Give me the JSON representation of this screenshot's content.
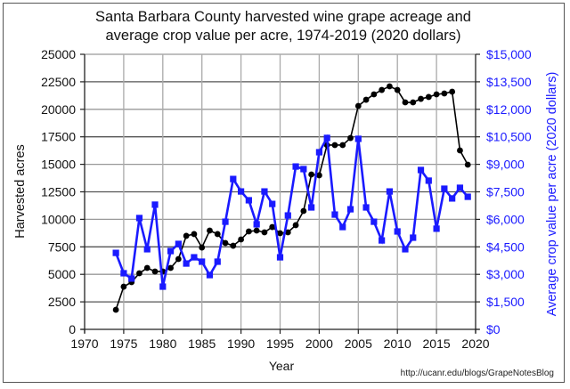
{
  "chart_data": {
    "type": "line",
    "title": "Santa Barbara County harvested wine grape acreage and average crop value per acre, 1974-2019 (2020 dollars)",
    "title_lines": [
      "Santa Barbara County harvested wine grape acreage and",
      "average crop value per acre, 1974-2019 (2020 dollars)"
    ],
    "xlabel": "Year",
    "ylabel": "Harvested acres",
    "ylabel_right": "Average crop value per acre (2020 dollars)",
    "xlim": [
      1970,
      2020
    ],
    "ylim": [
      0,
      25000
    ],
    "ylim_right": [
      0,
      15000
    ],
    "x_ticks": [
      "1970",
      "1975",
      "1980",
      "1985",
      "1990",
      "1995",
      "2000",
      "2005",
      "2010",
      "2015",
      "2020"
    ],
    "y_ticks_left": [
      "0",
      "2500",
      "5000",
      "7500",
      "10000",
      "12500",
      "15000",
      "17500",
      "20000",
      "22500",
      "25000"
    ],
    "y_ticks_right": [
      "$0",
      "$1,500",
      "$3,000",
      "$4,500",
      "$6,000",
      "$7,500",
      "$9,000",
      "$10,500",
      "$12,000",
      "$13,500",
      "$15,000"
    ],
    "grid": true,
    "legend": "none",
    "x": [
      1974,
      1975,
      1976,
      1977,
      1978,
      1979,
      1980,
      1981,
      1982,
      1983,
      1984,
      1985,
      1986,
      1987,
      1988,
      1989,
      1990,
      1991,
      1992,
      1993,
      1994,
      1995,
      1996,
      1997,
      1998,
      1999,
      2000,
      2001,
      2002,
      2003,
      2004,
      2005,
      2006,
      2007,
      2008,
      2009,
      2010,
      2011,
      2012,
      2013,
      2014,
      2015,
      2016,
      2017,
      2018,
      2019
    ],
    "series": [
      {
        "name": "Harvested acres",
        "axis": "left",
        "color": "#000000",
        "marker": "circle",
        "values": [
          1780,
          3880,
          4290,
          5100,
          5580,
          5260,
          5260,
          5580,
          6390,
          8500,
          8660,
          7440,
          8980,
          8660,
          7850,
          7600,
          8170,
          8900,
          8980,
          8820,
          9300,
          8740,
          8820,
          9470,
          10760,
          14080,
          14000,
          16750,
          16750,
          16750,
          17390,
          20310,
          20870,
          21360,
          21760,
          22090,
          21760,
          20630,
          20630,
          20950,
          21120,
          21360,
          21440,
          21600,
          16260,
          14970
        ]
      },
      {
        "name": "Average crop value per acre (2020 dollars)",
        "axis": "right",
        "color": "#1a1aff",
        "marker": "square",
        "values": [
          4170,
          3060,
          2770,
          6070,
          4370,
          6800,
          2330,
          4270,
          4660,
          3590,
          3930,
          3690,
          2960,
          3690,
          5870,
          8200,
          7520,
          7040,
          5730,
          7520,
          6840,
          3930,
          6210,
          8880,
          8740,
          6650,
          9660,
          10440,
          6260,
          5580,
          6550,
          10390,
          6650,
          5870,
          4850,
          7520,
          5340,
          4370,
          5000,
          8690,
          8110,
          5490,
          7670,
          7140,
          7720,
          7230
        ]
      }
    ],
    "attribution": "http://ucanr.edu/blogs/GrapeNotesBlog"
  }
}
